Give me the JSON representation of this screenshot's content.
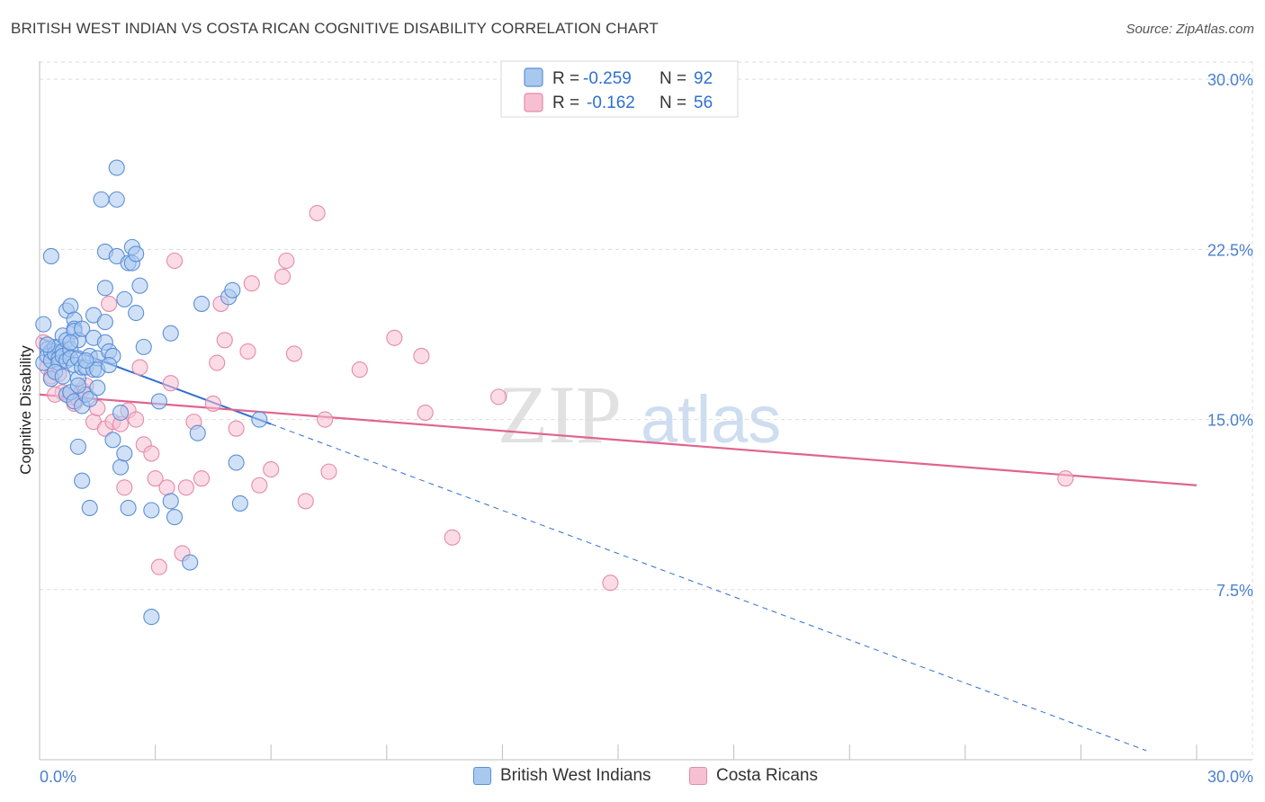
{
  "title": "BRITISH WEST INDIAN VS COSTA RICAN COGNITIVE DISABILITY CORRELATION CHART",
  "source": "Source: ZipAtlas.com",
  "watermark": {
    "zip": "ZIP",
    "atlas": "atlas"
  },
  "legend": {
    "r_label": "R =",
    "n_label": "N =",
    "rows": [
      {
        "r": "-0.259",
        "n": "92"
      },
      {
        "r": "-0.162",
        "n": "56"
      }
    ]
  },
  "colors": {
    "blue_fill": "#a9c8f0",
    "blue_stroke": "#5b8fd6",
    "blue_line": "#2f6fd1",
    "pink_fill": "#f7c0d2",
    "pink_stroke": "#e58aaa",
    "pink_line": "#e0648f",
    "tick_text": "#4a7fd0",
    "grid": "#dcdcdc"
  },
  "chart_data": {
    "type": "scatter",
    "title": "BRITISH WEST INDIAN VS COSTA RICAN COGNITIVE DISABILITY CORRELATION CHART",
    "xlabel": "",
    "ylabel": "Cognitive Disability",
    "xlim": [
      0,
      30
    ],
    "ylim": [
      0,
      30.8
    ],
    "x_tick_labels": [
      "0.0%",
      "30.0%"
    ],
    "y_ticks": [
      7.5,
      15.0,
      22.5,
      30.0
    ],
    "y_tick_labels": [
      "7.5%",
      "15.0%",
      "22.5%",
      "30.0%"
    ],
    "grid": true,
    "legend_position": "top-center",
    "series": [
      {
        "name": "British West Indians",
        "color": "#5b8fd6",
        "trend": {
          "x": [
            0.0,
            6.0
          ],
          "y": [
            18.6,
            14.8
          ],
          "dashed_extension_to": [
            28.7,
            0.4
          ]
        },
        "points": [
          [
            0.1,
            19.2
          ],
          [
            0.1,
            17.5
          ],
          [
            0.2,
            18.1
          ],
          [
            0.2,
            17.8
          ],
          [
            0.3,
            18.0
          ],
          [
            0.3,
            17.6
          ],
          [
            0.3,
            16.8
          ],
          [
            0.3,
            22.2
          ],
          [
            0.4,
            18.2
          ],
          [
            0.4,
            17.9
          ],
          [
            0.5,
            18.2
          ],
          [
            0.5,
            17.7
          ],
          [
            0.5,
            17.5
          ],
          [
            0.6,
            18.0
          ],
          [
            0.6,
            17.8
          ],
          [
            0.6,
            18.7
          ],
          [
            0.7,
            19.8
          ],
          [
            0.7,
            18.5
          ],
          [
            0.7,
            17.6
          ],
          [
            0.7,
            16.1
          ],
          [
            0.8,
            20.0
          ],
          [
            0.8,
            18.1
          ],
          [
            0.8,
            17.7
          ],
          [
            0.8,
            16.2
          ],
          [
            0.9,
            19.4
          ],
          [
            0.9,
            19.0
          ],
          [
            0.9,
            18.9
          ],
          [
            0.9,
            17.4
          ],
          [
            0.9,
            15.8
          ],
          [
            1.0,
            18.5
          ],
          [
            1.0,
            17.7
          ],
          [
            1.0,
            16.8
          ],
          [
            1.0,
            13.8
          ],
          [
            1.1,
            19.0
          ],
          [
            1.1,
            17.3
          ],
          [
            1.1,
            15.6
          ],
          [
            1.1,
            12.3
          ],
          [
            1.2,
            17.3
          ],
          [
            1.2,
            16.1
          ],
          [
            1.3,
            17.8
          ],
          [
            1.3,
            15.9
          ],
          [
            1.3,
            11.1
          ],
          [
            1.4,
            19.6
          ],
          [
            1.4,
            18.6
          ],
          [
            1.4,
            17.2
          ],
          [
            1.5,
            17.7
          ],
          [
            1.5,
            17.2
          ],
          [
            1.5,
            16.4
          ],
          [
            1.6,
            24.7
          ],
          [
            1.7,
            18.4
          ],
          [
            1.7,
            19.3
          ],
          [
            1.7,
            20.8
          ],
          [
            1.7,
            22.4
          ],
          [
            1.8,
            18.0
          ],
          [
            1.9,
            14.1
          ],
          [
            1.9,
            17.8
          ],
          [
            2.0,
            22.2
          ],
          [
            2.0,
            26.1
          ],
          [
            2.0,
            24.7
          ],
          [
            2.1,
            15.3
          ],
          [
            2.1,
            12.9
          ],
          [
            2.2,
            20.3
          ],
          [
            2.2,
            13.5
          ],
          [
            2.3,
            11.1
          ],
          [
            2.3,
            21.9
          ],
          [
            2.4,
            21.9
          ],
          [
            2.4,
            22.6
          ],
          [
            2.5,
            22.3
          ],
          [
            2.5,
            19.7
          ],
          [
            2.6,
            20.9
          ],
          [
            2.9,
            11.0
          ],
          [
            2.9,
            6.3
          ],
          [
            3.1,
            15.8
          ],
          [
            3.4,
            11.4
          ],
          [
            3.4,
            18.8
          ],
          [
            3.5,
            10.7
          ],
          [
            3.9,
            8.7
          ],
          [
            4.1,
            14.4
          ],
          [
            4.2,
            20.1
          ],
          [
            4.9,
            20.4
          ],
          [
            5.0,
            20.7
          ],
          [
            5.1,
            13.1
          ],
          [
            5.2,
            11.3
          ],
          [
            5.7,
            15.0
          ],
          [
            0.2,
            18.3
          ],
          [
            0.4,
            17.1
          ],
          [
            0.6,
            16.9
          ],
          [
            0.8,
            18.4
          ],
          [
            1.0,
            16.5
          ],
          [
            1.2,
            17.6
          ],
          [
            1.8,
            17.4
          ],
          [
            2.7,
            18.2
          ]
        ]
      },
      {
        "name": "Costa Ricans",
        "color": "#e58aaa",
        "trend": {
          "x": [
            0.0,
            30.0
          ],
          "y": [
            16.1,
            12.1
          ]
        },
        "points": [
          [
            0.1,
            18.4
          ],
          [
            0.2,
            17.3
          ],
          [
            0.3,
            16.9
          ],
          [
            0.5,
            17.0
          ],
          [
            0.6,
            16.2
          ],
          [
            0.8,
            16.0
          ],
          [
            0.9,
            15.7
          ],
          [
            1.0,
            15.9
          ],
          [
            1.1,
            16.3
          ],
          [
            1.2,
            16.5
          ],
          [
            1.4,
            14.9
          ],
          [
            1.5,
            15.5
          ],
          [
            1.7,
            14.6
          ],
          [
            1.8,
            20.1
          ],
          [
            1.9,
            14.9
          ],
          [
            2.1,
            14.8
          ],
          [
            2.2,
            12.0
          ],
          [
            2.3,
            15.4
          ],
          [
            2.5,
            15.0
          ],
          [
            2.6,
            17.3
          ],
          [
            2.7,
            13.9
          ],
          [
            2.9,
            13.5
          ],
          [
            3.0,
            12.4
          ],
          [
            3.1,
            8.5
          ],
          [
            3.3,
            12.0
          ],
          [
            3.4,
            16.6
          ],
          [
            3.5,
            22.0
          ],
          [
            3.7,
            9.1
          ],
          [
            3.8,
            12.0
          ],
          [
            4.0,
            14.9
          ],
          [
            4.2,
            12.4
          ],
          [
            4.5,
            15.7
          ],
          [
            4.6,
            17.5
          ],
          [
            4.7,
            20.1
          ],
          [
            4.8,
            18.5
          ],
          [
            5.1,
            14.6
          ],
          [
            5.4,
            18.0
          ],
          [
            5.5,
            21.0
          ],
          [
            5.7,
            12.1
          ],
          [
            6.0,
            12.8
          ],
          [
            6.3,
            21.3
          ],
          [
            6.4,
            22.0
          ],
          [
            6.6,
            17.9
          ],
          [
            6.9,
            11.4
          ],
          [
            7.2,
            24.1
          ],
          [
            7.4,
            15.0
          ],
          [
            7.5,
            12.7
          ],
          [
            8.3,
            17.2
          ],
          [
            9.2,
            18.6
          ],
          [
            9.9,
            17.8
          ],
          [
            10.0,
            15.3
          ],
          [
            10.7,
            9.8
          ],
          [
            11.9,
            16.0
          ],
          [
            14.8,
            7.8
          ],
          [
            0.4,
            16.1
          ],
          [
            26.6,
            12.4
          ]
        ]
      }
    ]
  }
}
